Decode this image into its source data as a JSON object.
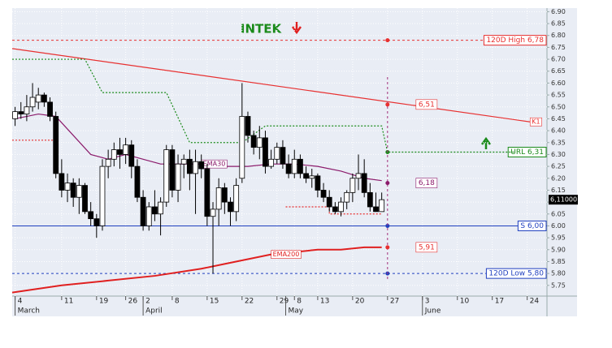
{
  "chart_data": {
    "type": "candlestick",
    "title": "INTEK",
    "xlim": [
      -0.5,
      91.4
    ],
    "ylim": [
      5.705,
      6.915
    ],
    "grid": true,
    "xticks": [
      {
        "value": 0,
        "label": "4"
      },
      {
        "value": 8,
        "label": "11"
      },
      {
        "value": 14,
        "label": "19"
      },
      {
        "value": 19,
        "label": "26"
      },
      {
        "value": 22,
        "label": "2"
      },
      {
        "value": 27,
        "label": "8"
      },
      {
        "value": 33,
        "label": "15"
      },
      {
        "value": 39,
        "label": "22"
      },
      {
        "value": 45,
        "label": "29"
      },
      {
        "value": 48,
        "label": "8"
      },
      {
        "value": 52,
        "label": "13"
      },
      {
        "value": 58,
        "label": "20"
      },
      {
        "value": 64,
        "label": "27"
      },
      {
        "value": 70,
        "label": "3"
      },
      {
        "value": 76,
        "label": "10"
      },
      {
        "value": 82,
        "label": "17"
      },
      {
        "value": 88,
        "label": "24"
      }
    ],
    "months": [
      {
        "value": 0,
        "label": "March"
      },
      {
        "value": 22,
        "label": "April"
      },
      {
        "value": 46.5,
        "label": "May"
      },
      {
        "value": 70,
        "label": "June"
      }
    ],
    "yticks": [
      {
        "value": 5.75,
        "label": "5.75"
      },
      {
        "value": 5.8,
        "label": "5.80"
      },
      {
        "value": 5.85,
        "label": "5.85"
      },
      {
        "value": 5.9,
        "label": "5.90"
      },
      {
        "value": 5.95,
        "label": "5.95"
      },
      {
        "value": 6.0,
        "label": "6.00"
      },
      {
        "value": 6.05,
        "label": "6.05"
      },
      {
        "value": 6.1,
        "label": "6.10"
      },
      {
        "value": 6.15,
        "label": "6.15"
      },
      {
        "value": 6.2,
        "label": "6.20"
      },
      {
        "value": 6.25,
        "label": "6.25"
      },
      {
        "value": 6.3,
        "label": "6.30"
      },
      {
        "value": 6.35,
        "label": "6.35"
      },
      {
        "value": 6.4,
        "label": "6.40"
      },
      {
        "value": 6.45,
        "label": "6.45"
      },
      {
        "value": 6.5,
        "label": "6.50"
      },
      {
        "value": 6.55,
        "label": "6.55"
      },
      {
        "value": 6.6,
        "label": "6.60"
      },
      {
        "value": 6.65,
        "label": "6.65"
      },
      {
        "value": 6.7,
        "label": "6.70"
      },
      {
        "value": 6.75,
        "label": "6.75"
      },
      {
        "value": 6.8,
        "label": "6.80"
      },
      {
        "value": 6.85,
        "label": "6.85"
      },
      {
        "value": 6.9,
        "label": "6.90"
      }
    ],
    "candles": {
      "x": [
        0,
        1,
        2,
        3,
        4,
        5,
        6,
        7,
        8,
        9,
        10,
        11,
        12,
        13,
        14,
        15,
        16,
        17,
        18,
        19,
        20,
        21,
        22,
        23,
        24,
        25,
        26,
        27,
        28,
        29,
        30,
        31,
        32,
        33,
        34,
        35,
        36,
        37,
        38,
        39,
        40,
        41,
        42,
        43,
        44,
        45,
        46,
        47,
        48,
        49,
        50,
        51,
        52,
        53,
        54,
        55,
        56,
        57,
        58,
        59,
        60,
        61,
        62,
        63
      ],
      "open": [
        6.45,
        6.48,
        6.47,
        6.5,
        6.52,
        6.55,
        6.52,
        6.46,
        6.22,
        6.15,
        6.18,
        6.12,
        6.17,
        6.06,
        6.03,
        6.0,
        6.25,
        6.28,
        6.32,
        6.3,
        6.34,
        6.25,
        6.12,
        6.0,
        6.08,
        6.05,
        6.1,
        6.32,
        6.15,
        6.26,
        6.28,
        6.22,
        6.27,
        6.24,
        6.04,
        6.07,
        6.16,
        6.1,
        6.06,
        6.2,
        6.46,
        6.38,
        6.33,
        6.37,
        6.25,
        6.28,
        6.33,
        6.26,
        6.22,
        6.28,
        6.22,
        6.2,
        6.21,
        6.15,
        6.12,
        6.08,
        6.06,
        6.1,
        6.14,
        6.2,
        6.22,
        6.14,
        6.08,
        6.06
      ],
      "high": [
        6.5,
        6.52,
        6.55,
        6.6,
        6.58,
        6.56,
        6.54,
        6.48,
        6.28,
        6.22,
        6.2,
        6.2,
        6.18,
        6.1,
        6.05,
        6.28,
        6.32,
        6.35,
        6.37,
        6.37,
        6.36,
        6.28,
        6.15,
        6.1,
        6.15,
        6.12,
        6.34,
        6.34,
        6.3,
        6.3,
        6.32,
        6.32,
        6.3,
        6.26,
        6.1,
        6.2,
        6.18,
        6.12,
        6.2,
        6.6,
        6.48,
        6.4,
        6.42,
        6.4,
        6.32,
        6.35,
        6.36,
        6.3,
        6.32,
        6.3,
        6.25,
        6.24,
        6.22,
        6.18,
        6.15,
        6.1,
        6.12,
        6.15,
        6.22,
        6.3,
        6.28,
        6.18,
        6.14,
        6.14
      ],
      "low": [
        6.42,
        6.45,
        6.44,
        6.48,
        6.49,
        6.5,
        6.44,
        6.2,
        6.12,
        6.1,
        6.08,
        6.05,
        6.05,
        6.0,
        5.95,
        5.98,
        6.2,
        6.25,
        6.24,
        6.26,
        6.2,
        6.1,
        5.98,
        5.98,
        6.02,
        5.96,
        6.08,
        6.12,
        6.1,
        6.2,
        6.15,
        6.05,
        6.2,
        6.0,
        5.8,
        6.0,
        6.05,
        6.0,
        6.02,
        6.18,
        6.35,
        6.3,
        6.28,
        6.22,
        6.24,
        6.26,
        6.24,
        6.2,
        6.2,
        6.2,
        6.18,
        6.16,
        6.12,
        6.1,
        6.06,
        6.05,
        6.04,
        6.07,
        6.1,
        6.15,
        6.12,
        6.06,
        6.06,
        6.06
      ],
      "close": [
        6.48,
        6.47,
        6.5,
        6.54,
        6.55,
        6.52,
        6.46,
        6.22,
        6.15,
        6.18,
        6.12,
        6.17,
        6.06,
        6.03,
        6.0,
        6.25,
        6.28,
        6.32,
        6.3,
        6.34,
        6.25,
        6.12,
        6.0,
        6.08,
        6.05,
        6.1,
        6.32,
        6.15,
        6.26,
        6.28,
        6.22,
        6.27,
        6.24,
        6.04,
        6.07,
        6.16,
        6.1,
        6.06,
        6.17,
        6.46,
        6.38,
        6.33,
        6.37,
        6.25,
        6.28,
        6.33,
        6.26,
        6.22,
        6.28,
        6.22,
        6.2,
        6.21,
        6.15,
        6.12,
        6.08,
        6.06,
        6.1,
        6.14,
        6.2,
        6.22,
        6.14,
        6.08,
        6.06,
        6.11
      ]
    },
    "series": [
      {
        "name": "K1",
        "color": "#e83030",
        "style": "solid",
        "x": [
          -0.5,
          88.5
        ],
        "values": [
          6.745,
          6.437
        ]
      },
      {
        "name": "EMA30",
        "color": "#8b1a6b",
        "style": "solid",
        "x": [
          0,
          4,
          7,
          10,
          13,
          16,
          19,
          22,
          25,
          28,
          32,
          36,
          40,
          44,
          48,
          52,
          56,
          60,
          63
        ],
        "values": [
          6.45,
          6.47,
          6.46,
          6.38,
          6.3,
          6.28,
          6.3,
          6.28,
          6.26,
          6.26,
          6.26,
          6.25,
          6.25,
          6.26,
          6.26,
          6.25,
          6.23,
          6.2,
          6.19
        ]
      },
      {
        "name": "EMA200",
        "color": "#e02020",
        "style": "solid",
        "x": [
          -0.5,
          8,
          16,
          24,
          32,
          36,
          40,
          44,
          48,
          52,
          56,
          60,
          63
        ],
        "values": [
          5.72,
          5.75,
          5.77,
          5.79,
          5.82,
          5.84,
          5.86,
          5.88,
          5.89,
          5.9,
          5.9,
          5.91,
          5.91
        ]
      },
      {
        "color": "#1a8a1a",
        "style": "dashed",
        "x": [
          -0.5,
          12,
          15,
          26,
          30,
          39,
          43,
          63,
          64,
          86
        ],
        "values": [
          6.7,
          6.7,
          6.56,
          6.56,
          6.35,
          6.35,
          6.42,
          6.42,
          6.31,
          6.31
        ]
      },
      {
        "color": "#e83030",
        "style": "dashed",
        "x": [
          -0.5,
          7,
          8,
          46.5,
          54,
          54,
          63
        ],
        "values": [
          6.36,
          6.36,
          null,
          6.08,
          6.08,
          6.05,
          6.05
        ]
      }
    ],
    "marker_x": 64,
    "levels": [
      {
        "label": "120D High 6,78",
        "value": 6.78,
        "color": "#e83030",
        "style": "dashed"
      },
      {
        "label": "URL 6,31",
        "value": 6.31,
        "color": "#1a8a1a",
        "style": "none"
      },
      {
        "label": "S 6,00",
        "value": 6.0,
        "color": "#1f3fbf",
        "style": "solid"
      },
      {
        "label": "120D Low 5,80",
        "value": 5.8,
        "color": "#1f3fbf",
        "style": "dashed"
      }
    ],
    "annotations": [
      {
        "value": 6.51,
        "text": "6,51",
        "color": "#e83030"
      },
      {
        "value": 6.18,
        "text": "6,18",
        "color": "#8b1a6b"
      },
      {
        "value": 5.91,
        "text": "5,91",
        "color": "#e83030"
      }
    ],
    "last_price": {
      "value": 6.11,
      "label": "6,11000"
    }
  }
}
